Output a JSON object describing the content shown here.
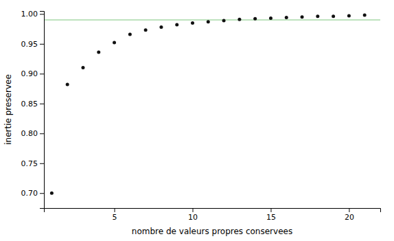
{
  "chart_data": {
    "type": "scatter",
    "xlabel": "nombre de valeurs propres conservees",
    "ylabel": "inertie preservee",
    "x": [
      1,
      2,
      3,
      4,
      5,
      6,
      7,
      8,
      9,
      10,
      11,
      12,
      13,
      14,
      15,
      16,
      17,
      18,
      19,
      20,
      21
    ],
    "values": [
      0.7,
      0.882,
      0.91,
      0.936,
      0.952,
      0.966,
      0.973,
      0.978,
      0.982,
      0.985,
      0.987,
      0.989,
      0.991,
      0.992,
      0.993,
      0.994,
      0.995,
      0.996,
      0.996,
      0.997,
      0.998
    ],
    "color": "#111111",
    "reference_line": {
      "value": 0.99,
      "color": "#a8d8a8"
    },
    "xlim": [
      0.5,
      22
    ],
    "ylim": [
      0.675,
      1.005
    ],
    "xticks": [
      5,
      10,
      15,
      20
    ],
    "yticks": [
      {
        "value": 0.7,
        "label": "0.70"
      },
      0.75,
      {
        "value": 0.8,
        "label": "0.80"
      },
      0.85,
      {
        "value": 0.9,
        "label": "0.90"
      },
      0.95,
      {
        "value": 1.0,
        "label": "1.00"
      }
    ],
    "grid": false
  }
}
